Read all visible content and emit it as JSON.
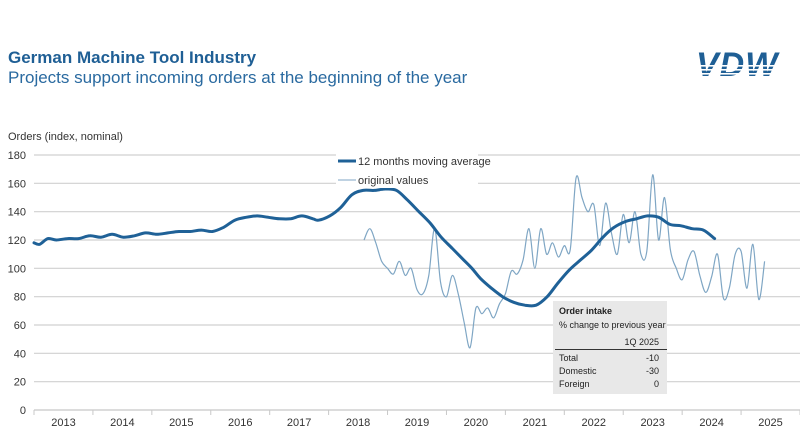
{
  "header": {
    "title": "German Machine Tool Industry",
    "subtitle": "Projects support incoming orders at the beginning of the year",
    "logo_text": "VDW"
  },
  "colors": {
    "brand": "#1f5f95",
    "moving_average": "#1f6197",
    "original": "#7fa6c4",
    "grid": "#d0d0d0",
    "infobox_bg": "#e8e8e8"
  },
  "chart_data": {
    "type": "line",
    "title": "German Machine Tool Industry",
    "subtitle": "Projects support incoming orders at the beginning of the year",
    "xlabel": "",
    "ylabel": "Orders (index, nominal)",
    "ylim": [
      0,
      180
    ],
    "yticks": [
      0,
      20,
      40,
      60,
      80,
      100,
      120,
      140,
      160,
      180
    ],
    "xlim": [
      2013.0,
      2026.0
    ],
    "xtick_labels": [
      "2013",
      "2014",
      "2015",
      "2016",
      "2017",
      "2018",
      "2019",
      "2020",
      "2021",
      "2022",
      "2023",
      "2024",
      "2025"
    ],
    "grid": true,
    "legend_position": "top-center",
    "series": [
      {
        "name": "12 months moving average",
        "x": [
          2013.0,
          2013.1,
          2013.25,
          2013.4,
          2013.6,
          2013.8,
          2014.0,
          2014.2,
          2014.4,
          2014.6,
          2014.8,
          2015.0,
          2015.2,
          2015.4,
          2015.6,
          2015.8,
          2016.0,
          2016.2,
          2016.4,
          2016.6,
          2016.8,
          2017.0,
          2017.2,
          2017.4,
          2017.6,
          2017.8,
          2018.0,
          2018.1,
          2018.3,
          2018.5,
          2018.7,
          2018.9,
          2019.1,
          2019.3,
          2019.5,
          2019.7,
          2019.9,
          2020.1,
          2020.3,
          2020.5,
          2020.7,
          2020.85,
          2021.0,
          2021.2,
          2021.4,
          2021.6,
          2021.8,
          2022.0,
          2022.2,
          2022.4,
          2022.6,
          2022.8,
          2023.0,
          2023.2,
          2023.4,
          2023.6,
          2023.8,
          2024.0,
          2024.2,
          2024.4,
          2024.6,
          2024.8,
          2025.0,
          2025.2
        ],
        "values": [
          118,
          117,
          121,
          120,
          121,
          121,
          123,
          122,
          124,
          122,
          123,
          125,
          124,
          125,
          126,
          126,
          127,
          126,
          129,
          134,
          136,
          137,
          136,
          135,
          135,
          137,
          135,
          134,
          137,
          143,
          152,
          155,
          155,
          156,
          155,
          148,
          140,
          132,
          122,
          114,
          106,
          100,
          93,
          86,
          80,
          76,
          74,
          74,
          80,
          90,
          99,
          106,
          113,
          122,
          129,
          133,
          135,
          137,
          136,
          131,
          130,
          128,
          127,
          121
        ],
        "x_note": "monthly-interpolated"
      },
      {
        "name": "original values",
        "x": [
          2018.6,
          2018.7,
          2018.8,
          2018.9,
          2019.0,
          2019.1,
          2019.2,
          2019.3,
          2019.4,
          2019.5,
          2019.6,
          2019.7,
          2019.8,
          2019.9,
          2020.0,
          2020.1,
          2020.2,
          2020.3,
          2020.4,
          2020.5,
          2020.6,
          2020.7,
          2020.8,
          2020.9,
          2021.0,
          2021.1,
          2021.2,
          2021.3,
          2021.4,
          2021.5,
          2021.6,
          2021.7,
          2021.8,
          2021.9,
          2022.0,
          2022.1,
          2022.2,
          2022.3,
          2022.4,
          2022.5,
          2022.6,
          2022.7,
          2022.8,
          2022.9,
          2023.0,
          2023.1,
          2023.2,
          2023.3,
          2023.4,
          2023.5,
          2023.6,
          2023.7,
          2023.8,
          2023.9,
          2024.0,
          2024.1,
          2024.2,
          2024.3,
          2024.4,
          2024.5,
          2024.6,
          2024.7,
          2024.8,
          2024.9,
          2025.0,
          2025.1,
          2025.2,
          2025.3,
          2025.4
        ],
        "values": [
          120,
          128,
          118,
          105,
          100,
          96,
          105,
          95,
          100,
          85,
          82,
          95,
          128,
          90,
          80,
          95,
          82,
          62,
          44,
          72,
          68,
          72,
          65,
          75,
          82,
          98,
          96,
          106,
          128,
          100,
          128,
          110,
          118,
          108,
          116,
          113,
          164,
          150,
          140,
          145,
          116,
          146,
          125,
          110,
          138,
          118,
          140,
          110,
          112,
          166,
          120,
          150,
          113,
          100,
          92,
          106,
          112,
          95,
          83,
          94,
          110,
          79,
          86,
          110,
          112,
          86,
          117,
          78,
          105
        ]
      }
    ]
  },
  "legend": {
    "items": [
      {
        "label": "12 months moving average"
      },
      {
        "label": "original values"
      }
    ]
  },
  "infobox": {
    "title": "Order intake",
    "subtitle": "% change to previous year",
    "column_header": "1Q 2025",
    "rows": [
      {
        "label": "Total",
        "value": "-10"
      },
      {
        "label": "Domestic",
        "value": "-30"
      },
      {
        "label": "Foreign",
        "value": "0"
      }
    ]
  }
}
